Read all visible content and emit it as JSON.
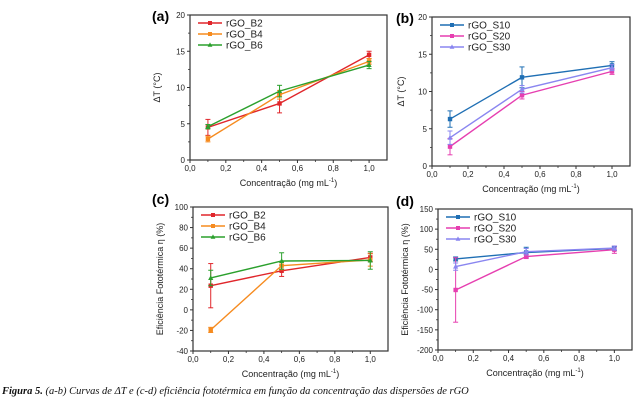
{
  "caption": {
    "bold": "Figura 5.",
    "text": " (a-b) Curvas de ΔT e (c-d) eficiência fototérmica em função da concentração das dispersões de rGO"
  },
  "chart_data": [
    {
      "id": "a",
      "panel_label": "(a)",
      "type": "line",
      "title": "",
      "xlabel": "Concentração (mg mL",
      "xlabel_sup": "-1",
      "xlabel_end": ")",
      "ylabel": "ΔT (°C)",
      "xlim": [
        0.0,
        1.1
      ],
      "ylim": [
        0,
        20
      ],
      "xticks": [
        0.0,
        0.2,
        0.4,
        0.6,
        0.8,
        1.0
      ],
      "xtick_labels": [
        "0,0",
        "0,2",
        "0,4",
        "0,6",
        "0,8",
        "1,0"
      ],
      "yticks": [
        0,
        5,
        10,
        15,
        20
      ],
      "ytick_labels": [
        "0",
        "5",
        "10",
        "15",
        "20"
      ],
      "legend": "top-left",
      "grid": false,
      "x": [
        0.1,
        0.5,
        1.0
      ],
      "series": [
        {
          "name": "rGO_B2",
          "color": "#e0262b",
          "marker": "square",
          "values": [
            4.5,
            7.8,
            14.5
          ],
          "errors": [
            1.1,
            1.3,
            0.5
          ]
        },
        {
          "name": "rGO_B4",
          "color": "#f68b1f",
          "marker": "square",
          "values": [
            2.9,
            9.0,
            13.6
          ],
          "errors": [
            0.4,
            0.6,
            0.4
          ]
        },
        {
          "name": "rGO_B6",
          "color": "#2ba02d",
          "marker": "triangle",
          "values": [
            4.6,
            9.5,
            13.1
          ],
          "errors": [
            0.3,
            0.8,
            0.5
          ]
        }
      ]
    },
    {
      "id": "b",
      "panel_label": "(b)",
      "type": "line",
      "title": "",
      "xlabel": "Concentração (mg mL",
      "xlabel_sup": "-1",
      "xlabel_end": ")",
      "ylabel": "ΔT (°C)",
      "xlim": [
        0.0,
        1.1
      ],
      "ylim": [
        0,
        20
      ],
      "xticks": [
        0.0,
        0.2,
        0.4,
        0.6,
        0.8,
        1.0
      ],
      "xtick_labels": [
        "0,0",
        "0,2",
        "0,4",
        "0,6",
        "0,8",
        "1,0"
      ],
      "yticks": [
        0,
        5,
        10,
        15,
        20
      ],
      "ytick_labels": [
        "0",
        "5",
        "10",
        "15",
        "20"
      ],
      "legend": "top-left",
      "grid": false,
      "x": [
        0.1,
        0.5,
        1.0
      ],
      "series": [
        {
          "name": "rGO_S10",
          "color": "#1f6fb4",
          "marker": "square",
          "values": [
            6.3,
            11.9,
            13.5
          ],
          "errors": [
            1.1,
            1.4,
            0.5
          ]
        },
        {
          "name": "rGO_S20",
          "color": "#e63fb0",
          "marker": "square",
          "values": [
            2.6,
            9.5,
            12.7
          ],
          "errors": [
            1.1,
            0.5,
            0.4
          ]
        },
        {
          "name": "rGO_S30",
          "color": "#8a86f0",
          "marker": "triangle",
          "values": [
            3.8,
            10.3,
            13.2
          ],
          "errors": [
            0.9,
            0.5,
            0.4
          ]
        }
      ]
    },
    {
      "id": "c",
      "panel_label": "(c)",
      "type": "line",
      "title": "",
      "xlabel": "Concentração (mg mL",
      "xlabel_sup": "-1",
      "xlabel_end": ")",
      "ylabel": "Eficiência Fototérmica η (%)",
      "xlim": [
        0.0,
        1.1
      ],
      "ylim": [
        -40,
        100
      ],
      "xticks": [
        0.0,
        0.2,
        0.4,
        0.6,
        0.8,
        1.0
      ],
      "xtick_labels": [
        "0,0",
        "0,2",
        "0,4",
        "0,6",
        "0,8",
        "1,0"
      ],
      "yticks": [
        -40,
        -20,
        0,
        20,
        40,
        60,
        80,
        100
      ],
      "ytick_labels": [
        "-40",
        "-20",
        "0",
        "20",
        "40",
        "60",
        "80",
        "100"
      ],
      "legend": "top-left",
      "grid": false,
      "x": [
        0.1,
        0.5,
        1.0
      ],
      "series": [
        {
          "name": "rGO_B2",
          "color": "#e0262b",
          "marker": "square",
          "values": [
            23.5,
            38.0,
            51.0
          ],
          "errors": [
            21.5,
            5.5,
            4.0
          ]
        },
        {
          "name": "rGO_B4",
          "color": "#f68b1f",
          "marker": "square",
          "values": [
            -19.5,
            43.0,
            48.5
          ],
          "errors": [
            2.5,
            4.0,
            6.0
          ]
        },
        {
          "name": "rGO_B6",
          "color": "#2ba02d",
          "marker": "triangle",
          "values": [
            31.0,
            47.5,
            48.0
          ],
          "errors": [
            7.5,
            8.0,
            8.5
          ]
        }
      ]
    },
    {
      "id": "d",
      "panel_label": "(d)",
      "type": "line",
      "title": "",
      "xlabel": "Concentração (mg mL",
      "xlabel_sup": "-1",
      "xlabel_end": ")",
      "ylabel": "Eficiência Fototérmica η (%)",
      "xlim": [
        0.0,
        1.1
      ],
      "ylim": [
        -200,
        150
      ],
      "xticks": [
        0.0,
        0.2,
        0.4,
        0.6,
        0.8,
        1.0
      ],
      "xtick_labels": [
        "0,0",
        "0,2",
        "0,4",
        "0,6",
        "0,8",
        "1,0"
      ],
      "yticks": [
        -200,
        -150,
        -100,
        -50,
        0,
        50,
        100,
        150
      ],
      "ytick_labels": [
        "-200",
        "-150",
        "-100",
        "-50",
        "0",
        "50",
        "100",
        "150"
      ],
      "legend": "top-left",
      "grid": false,
      "x": [
        0.1,
        0.5,
        1.0
      ],
      "series": [
        {
          "name": "rGO_S10",
          "color": "#1f6fb4",
          "marker": "square",
          "values": [
            26,
            42,
            52
          ],
          "errors": [
            5,
            13,
            5
          ]
        },
        {
          "name": "rGO_S20",
          "color": "#e63fb0",
          "marker": "square",
          "values": [
            -51,
            32,
            49
          ],
          "errors": [
            80,
            5,
            9
          ]
        },
        {
          "name": "rGO_S30",
          "color": "#8a86f0",
          "marker": "triangle",
          "values": [
            7,
            44,
            53
          ],
          "errors": [
            9,
            8,
            5
          ]
        }
      ]
    }
  ]
}
